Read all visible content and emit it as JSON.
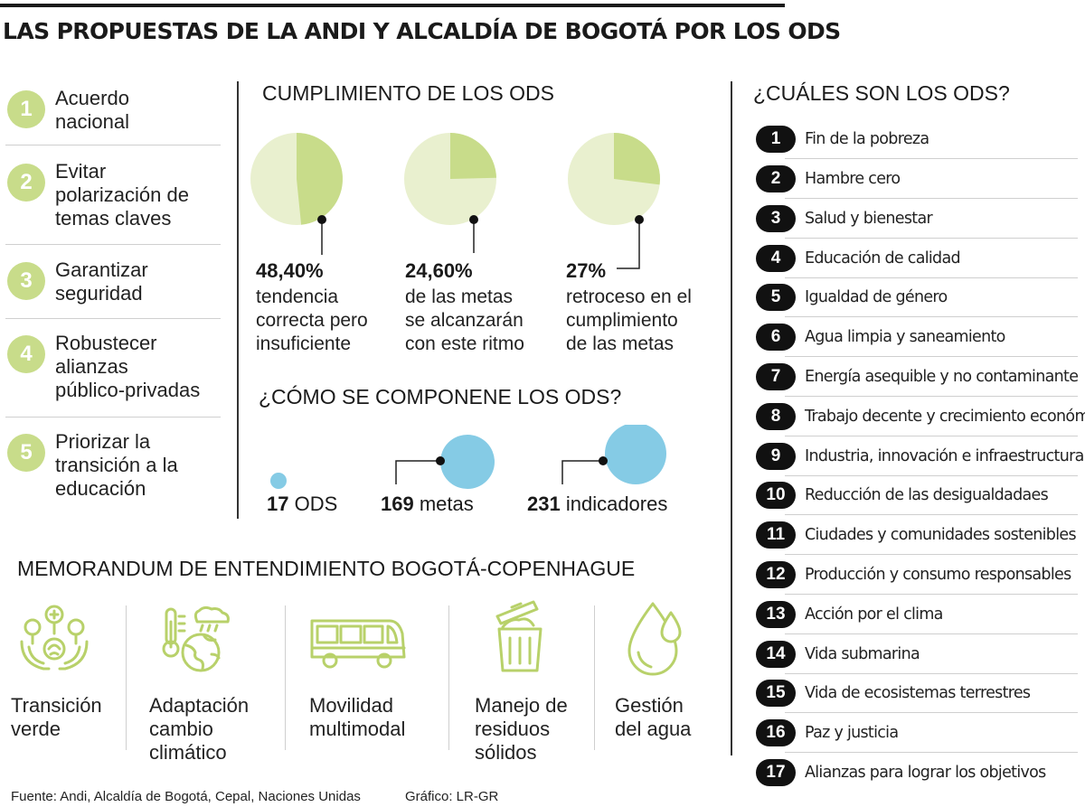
{
  "title": "LAS PROPUESTAS DE LA ANDI Y ALCALDÍA DE BOGOTÁ POR LOS ODS",
  "colors": {
    "green_light": "#e9f0cf",
    "green": "#c8dc8a",
    "blue": "#85cbe5",
    "dark": "#111111"
  },
  "proposals": [
    {
      "num": "1",
      "lines": [
        "Acuerdo",
        "nacional"
      ]
    },
    {
      "num": "2",
      "lines": [
        "Evitar",
        "polarización de",
        "temas claves"
      ]
    },
    {
      "num": "3",
      "lines": [
        "Garantizar",
        "seguridad"
      ]
    },
    {
      "num": "4",
      "lines": [
        "Robustecer",
        "alianzas",
        "público-privadas"
      ]
    },
    {
      "num": "5",
      "lines": [
        "Priorizar la",
        "transición a la",
        "educación"
      ]
    }
  ],
  "cumplimiento": {
    "heading": "CUMPLIMIENTO DE LOS ODS",
    "items": [
      {
        "percent": 48.4,
        "label": "48,40%",
        "lines": [
          "tendencia",
          "correcta pero",
          "insuficiente"
        ]
      },
      {
        "percent": 24.6,
        "label": "24,60%",
        "lines": [
          "de las metas",
          "se alcanzarán",
          "con este ritmo"
        ]
      },
      {
        "percent": 27,
        "label": "27%",
        "lines": [
          "retroceso en el",
          "cumplimiento",
          "de las metas"
        ]
      }
    ]
  },
  "composicion": {
    "heading": "¿CÓMO SE COMPONENE LOS ODS?",
    "items": [
      {
        "value": "17",
        "unit": "ODS"
      },
      {
        "value": "169",
        "unit": "metas"
      },
      {
        "value": "231",
        "unit": "indicadores"
      }
    ]
  },
  "memorandum": {
    "heading": "MEMORANDUM DE ENTENDIMIENTO BOGOTÁ-COPENHAGUE",
    "items": [
      {
        "icon": "plant-hands-icon",
        "lines": [
          "Transición",
          "verde"
        ]
      },
      {
        "icon": "thermometer-globe-icon",
        "lines": [
          "Adaptación",
          "cambio",
          "climático"
        ]
      },
      {
        "icon": "bus-icon",
        "lines": [
          "Movilidad",
          "multimodal"
        ]
      },
      {
        "icon": "trash-can-icon",
        "lines": [
          "Manejo de",
          "residuos",
          "sólidos"
        ]
      },
      {
        "icon": "water-drop-icon",
        "lines": [
          "Gestión",
          "del agua"
        ]
      }
    ]
  },
  "ods": {
    "heading": "¿CUÁLES SON LOS ODS?",
    "items": [
      {
        "num": "1",
        "label": "Fin de la pobreza"
      },
      {
        "num": "2",
        "label": "Hambre cero"
      },
      {
        "num": "3",
        "label": "Salud y bienestar"
      },
      {
        "num": "4",
        "label": "Educación de calidad"
      },
      {
        "num": "5",
        "label": "Igualdad de género"
      },
      {
        "num": "6",
        "label": "Agua limpia y saneamiento"
      },
      {
        "num": "7",
        "label": "Energía asequible y no contaminante"
      },
      {
        "num": "8",
        "label": "Trabajo decente y crecimiento económico"
      },
      {
        "num": "9",
        "label": "Industria, innovación e infraestructura"
      },
      {
        "num": "10",
        "label": "Reducción de las desigualdadaes"
      },
      {
        "num": "11",
        "label": "Ciudades y comunidades sostenibles"
      },
      {
        "num": "12",
        "label": "Producción y consumo responsables"
      },
      {
        "num": "13",
        "label": "Acción por el clima"
      },
      {
        "num": "14",
        "label": "Vida submarina"
      },
      {
        "num": "15",
        "label": "Vida de ecosistemas terrestres"
      },
      {
        "num": "16",
        "label": "Paz y justicia"
      },
      {
        "num": "17",
        "label": "Alianzas para lograr los objetivos"
      }
    ]
  },
  "footer": {
    "source": "Fuente: Andi, Alcaldía de Bogotá, Cepal, Naciones Unidas",
    "credit": "Gráfico: LR-GR"
  }
}
